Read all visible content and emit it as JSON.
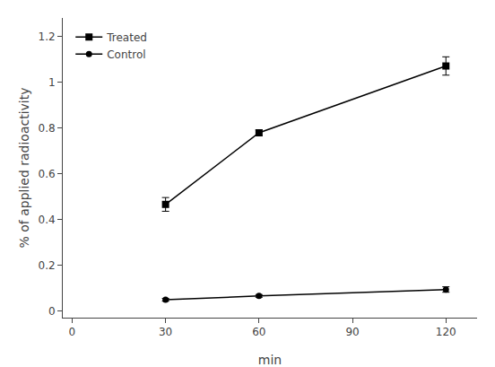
{
  "chart_data": {
    "type": "line",
    "xlabel": "min",
    "ylabel": "% of applied radioactivity",
    "x": [
      30,
      60,
      120
    ],
    "series": [
      {
        "name": "Treated",
        "color": "#000000",
        "marker": "square",
        "values": [
          0.465,
          0.778,
          1.07
        ],
        "yerr": [
          0.03,
          0.012,
          0.04
        ]
      },
      {
        "name": "Control",
        "color": "#000000",
        "marker": "circle",
        "values": [
          0.048,
          0.065,
          0.093
        ],
        "yerr": [
          0.006,
          0.006,
          0.012
        ]
      }
    ],
    "xlim": [
      -3,
      130
    ],
    "xticks": [
      0,
      30,
      60,
      90,
      120
    ],
    "ylim": [
      -0.03,
      1.28
    ],
    "yticks": [
      0,
      0.2,
      0.4,
      0.6,
      0.8,
      1,
      1.2
    ],
    "grid": false,
    "legend": "upper left"
  }
}
